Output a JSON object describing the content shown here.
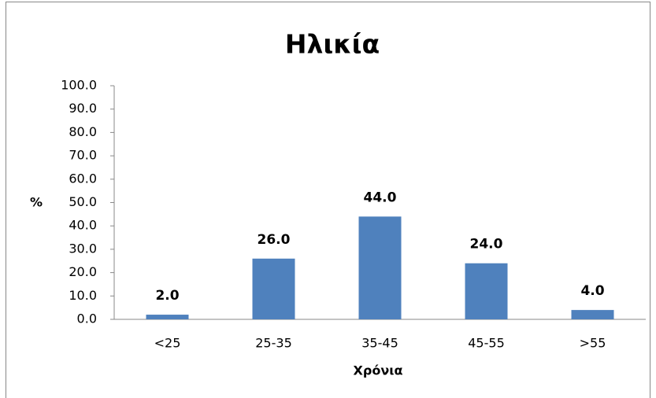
{
  "chart_data": {
    "type": "bar",
    "title": "Ηλικία",
    "x_label": "Χρόνια",
    "y_label": "%",
    "categories": [
      "<25",
      "25-35",
      "35-45",
      "45-55",
      ">55"
    ],
    "values": [
      2,
      26,
      44,
      24,
      4
    ],
    "value_labels": [
      "2.0",
      "26.0",
      "44.0",
      "24.0",
      "4.0"
    ],
    "color": "#4f81bd",
    "value_label_color": "#1f1fe0",
    "ylim": [
      0,
      100
    ],
    "yticks": [
      {
        "value": 0,
        "label": "0.0"
      },
      {
        "value": 10,
        "label": "10.0"
      },
      {
        "value": 20,
        "label": "20.0"
      },
      {
        "value": 30,
        "label": "30.0"
      },
      {
        "value": 40,
        "label": "40.0"
      },
      {
        "value": 50,
        "label": "50.0"
      },
      {
        "value": 60,
        "label": "60.0"
      },
      {
        "value": 70,
        "label": "70.0"
      },
      {
        "value": 80,
        "label": "80.0"
      },
      {
        "value": 90,
        "label": "90.0"
      },
      {
        "value": 100,
        "label": "100.0"
      }
    ],
    "grid": false
  }
}
